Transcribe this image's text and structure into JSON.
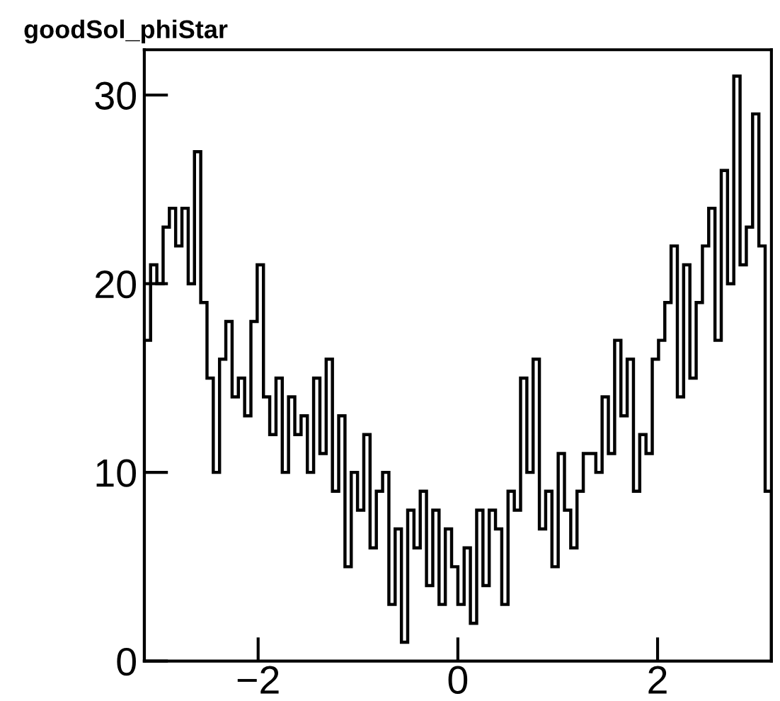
{
  "chart_data": {
    "type": "histogram",
    "title": "goodSol_phiStar",
    "bins": [
      -3.14,
      -3.0772,
      -3.0144,
      -2.9516,
      -2.8888,
      -2.826,
      -2.7632,
      -2.7004,
      -2.6376,
      -2.5748,
      -2.512,
      -2.4492,
      -2.3864,
      -2.3236,
      -2.2608,
      -2.198,
      -2.1352,
      -2.0724,
      -2.0096,
      -1.9468,
      -1.884,
      -1.8212,
      -1.7584,
      -1.6956,
      -1.6328,
      -1.57,
      -1.5072,
      -1.4444,
      -1.3816,
      -1.3188,
      -1.256,
      -1.1932,
      -1.1304,
      -1.0676,
      -1.0048,
      -0.942,
      -0.8792,
      -0.8164,
      -0.7536,
      -0.6908,
      -0.628,
      -0.5652,
      -0.5024,
      -0.4396,
      -0.3768,
      -0.314,
      -0.2512,
      -0.1884,
      -0.1256,
      -0.0628,
      0,
      0.0628,
      0.1256,
      0.1884,
      0.2512,
      0.314,
      0.3768,
      0.4396,
      0.5024,
      0.5652,
      0.628,
      0.6908,
      0.7536,
      0.8164,
      0.8792,
      0.942,
      1.0048,
      1.0676,
      1.1304,
      1.1932,
      1.256,
      1.3188,
      1.3816,
      1.4444,
      1.5072,
      1.57,
      1.6328,
      1.6956,
      1.7584,
      1.8212,
      1.884,
      1.9468,
      2.0096,
      2.0724,
      2.1352,
      2.198,
      2.2608,
      2.3236,
      2.3864,
      2.4492,
      2.512,
      2.5748,
      2.6376,
      2.7004,
      2.7632,
      2.826,
      2.8888,
      2.9516,
      3.0144,
      3.0772,
      3.14
    ],
    "values": [
      17,
      21,
      20,
      23,
      24,
      22,
      24,
      20,
      27,
      19,
      15,
      10,
      16,
      18,
      14,
      15,
      13,
      18,
      21,
      14,
      12,
      15,
      10,
      14,
      12,
      13,
      10,
      15,
      11,
      16,
      9,
      13,
      5,
      10,
      8,
      12,
      6,
      9,
      10,
      3,
      7,
      1,
      8,
      6,
      9,
      4,
      8,
      3,
      7,
      5,
      3,
      6,
      2,
      8,
      4,
      8,
      7,
      3,
      9,
      8,
      15,
      10,
      16,
      7,
      9,
      5,
      11,
      8,
      6,
      9,
      11,
      11,
      10,
      14,
      11,
      17,
      13,
      16,
      9,
      12,
      11,
      16,
      17,
      19,
      22,
      14,
      21,
      15,
      19,
      22,
      24,
      17,
      26,
      20,
      31,
      21,
      23,
      29,
      22,
      9
    ],
    "color": "#000000",
    "xlim": [
      -3.14,
      3.14
    ],
    "ylim": [
      0,
      32.4
    ],
    "xticks": [
      {
        "value": -2,
        "label": "−2"
      },
      0,
      2
    ],
    "yticks": [
      0,
      10,
      20,
      30
    ],
    "grid": false,
    "legend": false
  }
}
